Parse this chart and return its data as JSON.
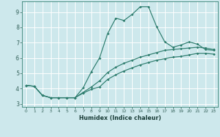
{
  "xlabel": "Humidex (Indice chaleur)",
  "xlim": [
    -0.5,
    23.5
  ],
  "ylim": [
    2.8,
    9.7
  ],
  "yticks": [
    3,
    4,
    5,
    6,
    7,
    8,
    9
  ],
  "xticks": [
    0,
    1,
    2,
    3,
    4,
    5,
    6,
    7,
    8,
    9,
    10,
    11,
    12,
    13,
    14,
    15,
    16,
    17,
    18,
    19,
    20,
    21,
    22,
    23
  ],
  "bg_color": "#cde8ec",
  "line_color": "#2e7d6e",
  "grid_color": "#ffffff",
  "line1_y": [
    4.2,
    4.15,
    3.55,
    3.4,
    3.4,
    3.4,
    3.4,
    4.05,
    5.1,
    6.0,
    7.6,
    8.6,
    8.45,
    8.85,
    9.35,
    9.35,
    8.05,
    7.05,
    6.7,
    6.85,
    7.05,
    6.9,
    6.55,
    6.5
  ],
  "line2_y": [
    4.2,
    4.15,
    3.55,
    3.4,
    3.4,
    3.4,
    3.4,
    3.75,
    4.1,
    4.5,
    5.05,
    5.4,
    5.65,
    5.85,
    6.05,
    6.2,
    6.35,
    6.5,
    6.55,
    6.6,
    6.65,
    6.7,
    6.65,
    6.55
  ],
  "line3_y": [
    4.2,
    4.15,
    3.55,
    3.4,
    3.4,
    3.4,
    3.4,
    3.7,
    3.95,
    4.1,
    4.6,
    4.9,
    5.15,
    5.35,
    5.55,
    5.7,
    5.85,
    5.95,
    6.05,
    6.1,
    6.2,
    6.3,
    6.3,
    6.25
  ]
}
